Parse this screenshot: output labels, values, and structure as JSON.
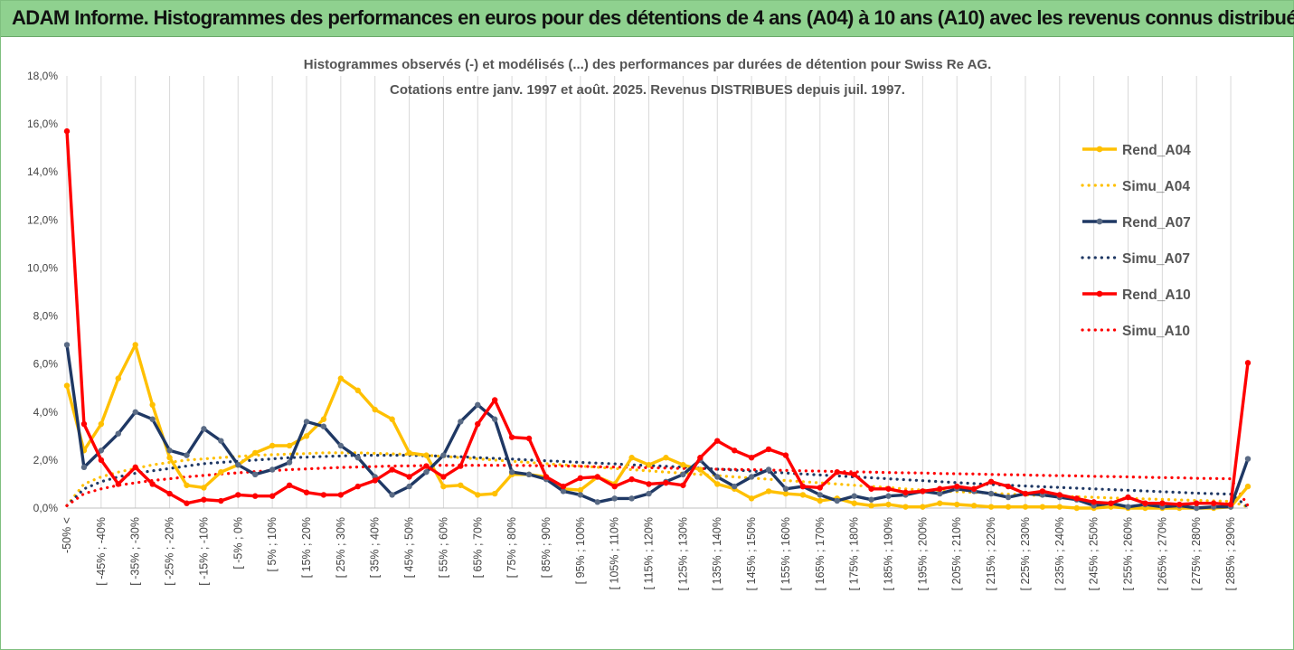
{
  "banner": {
    "title": "ADAM Informe. Histogrammes des performances en euros pour des détentions de 4 ans (A04) à 10 ans (A10) avec les revenus connus distribués"
  },
  "colors": {
    "A04": "#ffc000",
    "A07": "#1f3864",
    "A10": "#ff0000",
    "banner": "#8fd18f",
    "grid": "#d9d9d9"
  },
  "chart_data": {
    "type": "line",
    "title": "Histogrammes observés (-) et modélisés (...) des performances par durées de détention pour Swiss Re AG.",
    "subtitle": "Cotations entre janv. 1997 et août. 2025. Revenus DISTRIBUES depuis juil. 1997.",
    "xlabel": "",
    "ylabel": "",
    "ylim": [
      0,
      18
    ],
    "y_ticks": [
      "0,0%",
      "2,0%",
      "4,0%",
      "6,0%",
      "8,0%",
      "10,0%",
      "12,0%",
      "14,0%",
      "16,0%",
      "18,0%"
    ],
    "grid": "vertical",
    "legend_position": "right",
    "x_labels": [
      "-50% <",
      "[ -45% ; -40%",
      "[ -35% ; -30%",
      "[ -25% ; -20%",
      "[ -15% ; -10%",
      "[ -5% ; 0%",
      "[ 5% ; 10%",
      "[ 15% ; 20%",
      "[ 25% ; 30%",
      "[ 35% ; 40%",
      "[ 45% ; 50%",
      "[ 55% ; 60%",
      "[ 65% ; 70%",
      "[ 75% ; 80%",
      "[ 85% ; 90%",
      "[ 95% ; 100%",
      "[ 105% ; 110%",
      "[ 115% ; 120%",
      "[ 125% ; 130%",
      "[ 135% ; 140%",
      "[ 145% ; 150%",
      "[ 155% ; 160%",
      "[ 165% ; 170%",
      "[ 175% ; 180%",
      "[ 185% ; 190%",
      "[ 195% ; 200%",
      "[ 205% ; 210%",
      "[ 215% ; 220%",
      "[ 225% ; 230%",
      "[ 235% ; 240%",
      "[ 245% ; 250%",
      "[ 255% ; 260%",
      "[ 265% ; 270%",
      "[ 275% ; 280%",
      "[ 285% ; 290%"
    ],
    "series": [
      {
        "name": "Rend_A04",
        "key": "A04",
        "style": "solid",
        "markers": true,
        "values": [
          5.1,
          2.4,
          3.5,
          5.4,
          6.8,
          4.3,
          2.1,
          0.95,
          0.85,
          1.5,
          1.8,
          2.3,
          2.6,
          2.6,
          3.0,
          3.7,
          5.4,
          4.9,
          4.1,
          3.7,
          2.3,
          2.2,
          0.9,
          0.95,
          0.55,
          0.6,
          1.4,
          1.4,
          1.3,
          0.8,
          0.75,
          1.3,
          1.0,
          2.1,
          1.8,
          2.1,
          1.8,
          1.6,
          1.0,
          0.8,
          0.4,
          0.7,
          0.6,
          0.55,
          0.3,
          0.4,
          0.2,
          0.1,
          0.15,
          0.05,
          0.05,
          0.2,
          0.15,
          0.1,
          0.05,
          0.05,
          0.05,
          0.05,
          0.05,
          0.0,
          0.0,
          0.05,
          0.0,
          0.0,
          0.0,
          0.0,
          0.0,
          0.0,
          0.05,
          0.9
        ]
      },
      {
        "name": "Simu_A04",
        "key": "A04",
        "style": "dotted",
        "markers": false,
        "values": [
          0.1,
          1.0,
          1.3,
          1.5,
          1.65,
          1.8,
          1.9,
          2.0,
          2.05,
          2.1,
          2.15,
          2.2,
          2.22,
          2.25,
          2.27,
          2.3,
          2.3,
          2.3,
          2.28,
          2.26,
          2.24,
          2.2,
          2.15,
          2.1,
          2.05,
          2.0,
          1.95,
          1.9,
          1.85,
          1.8,
          1.75,
          1.7,
          1.65,
          1.6,
          1.55,
          1.5,
          1.45,
          1.4,
          1.35,
          1.3,
          1.25,
          1.2,
          1.15,
          1.1,
          1.05,
          1.0,
          0.95,
          0.9,
          0.85,
          0.8,
          0.75,
          0.72,
          0.68,
          0.65,
          0.62,
          0.58,
          0.55,
          0.52,
          0.5,
          0.47,
          0.45,
          0.42,
          0.4,
          0.38,
          0.36,
          0.34,
          0.32,
          0.3,
          0.28,
          0.05
        ]
      },
      {
        "name": "Rend_A07",
        "key": "A07",
        "style": "solid",
        "markers": true,
        "values": [
          6.8,
          1.7,
          2.4,
          3.1,
          4.0,
          3.7,
          2.4,
          2.2,
          3.3,
          2.8,
          1.8,
          1.4,
          1.6,
          1.9,
          3.6,
          3.4,
          2.6,
          2.1,
          1.3,
          0.55,
          0.9,
          1.5,
          2.2,
          3.6,
          4.3,
          3.7,
          1.5,
          1.4,
          1.2,
          0.7,
          0.55,
          0.25,
          0.4,
          0.4,
          0.6,
          1.1,
          1.4,
          2.0,
          1.3,
          0.9,
          1.3,
          1.6,
          0.8,
          0.9,
          0.55,
          0.3,
          0.5,
          0.35,
          0.5,
          0.55,
          0.7,
          0.6,
          0.8,
          0.7,
          0.6,
          0.45,
          0.6,
          0.55,
          0.45,
          0.35,
          0.1,
          0.2,
          0.05,
          0.15,
          0.05,
          0.1,
          0.0,
          0.05,
          0.05,
          2.05
        ]
      },
      {
        "name": "Simu_A07",
        "key": "A07",
        "style": "dotted",
        "markers": false,
        "values": [
          0.1,
          0.8,
          1.1,
          1.3,
          1.45,
          1.55,
          1.65,
          1.75,
          1.85,
          1.9,
          1.95,
          2.0,
          2.05,
          2.1,
          2.12,
          2.15,
          2.17,
          2.2,
          2.2,
          2.2,
          2.2,
          2.18,
          2.16,
          2.14,
          2.1,
          2.07,
          2.04,
          2.0,
          1.97,
          1.94,
          1.9,
          1.87,
          1.84,
          1.8,
          1.77,
          1.74,
          1.7,
          1.66,
          1.62,
          1.58,
          1.54,
          1.5,
          1.46,
          1.42,
          1.38,
          1.34,
          1.3,
          1.26,
          1.22,
          1.18,
          1.14,
          1.1,
          1.06,
          1.02,
          0.98,
          0.95,
          0.92,
          0.89,
          0.86,
          0.83,
          0.8,
          0.77,
          0.74,
          0.71,
          0.68,
          0.65,
          0.62,
          0.6,
          0.58,
          0.05
        ]
      },
      {
        "name": "Rend_A10",
        "key": "A10",
        "style": "solid",
        "markers": true,
        "values": [
          15.7,
          3.5,
          2.0,
          1.0,
          1.7,
          1.0,
          0.6,
          0.2,
          0.35,
          0.3,
          0.55,
          0.5,
          0.5,
          0.95,
          0.65,
          0.55,
          0.55,
          0.9,
          1.15,
          1.6,
          1.3,
          1.75,
          1.3,
          1.75,
          3.5,
          4.5,
          2.95,
          2.9,
          1.3,
          0.9,
          1.25,
          1.3,
          0.9,
          1.2,
          1.0,
          1.05,
          0.95,
          2.1,
          2.8,
          2.4,
          2.1,
          2.45,
          2.2,
          0.9,
          0.85,
          1.5,
          1.4,
          0.8,
          0.8,
          0.65,
          0.7,
          0.8,
          0.9,
          0.8,
          1.1,
          0.9,
          0.6,
          0.7,
          0.55,
          0.4,
          0.25,
          0.2,
          0.45,
          0.2,
          0.2,
          0.15,
          0.2,
          0.2,
          0.15,
          6.05
        ]
      },
      {
        "name": "Simu_A10",
        "key": "A10",
        "style": "dotted",
        "markers": false,
        "values": [
          0.1,
          0.6,
          0.8,
          0.95,
          1.05,
          1.15,
          1.22,
          1.3,
          1.36,
          1.42,
          1.47,
          1.52,
          1.56,
          1.6,
          1.63,
          1.66,
          1.69,
          1.71,
          1.73,
          1.75,
          1.76,
          1.77,
          1.78,
          1.78,
          1.78,
          1.78,
          1.78,
          1.77,
          1.76,
          1.75,
          1.74,
          1.72,
          1.71,
          1.7,
          1.68,
          1.67,
          1.65,
          1.64,
          1.62,
          1.61,
          1.6,
          1.58,
          1.57,
          1.55,
          1.54,
          1.52,
          1.51,
          1.5,
          1.48,
          1.47,
          1.46,
          1.44,
          1.43,
          1.42,
          1.4,
          1.39,
          1.38,
          1.36,
          1.35,
          1.34,
          1.32,
          1.31,
          1.3,
          1.28,
          1.27,
          1.26,
          1.24,
          1.23,
          1.22,
          0.1
        ]
      }
    ]
  }
}
